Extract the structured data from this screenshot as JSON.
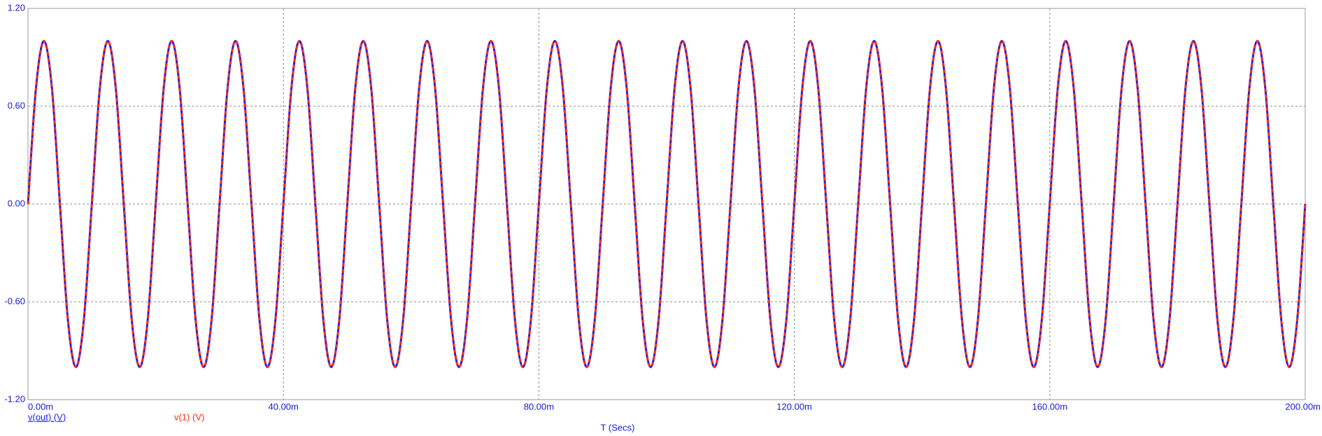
{
  "chart_data": {
    "type": "line",
    "x_label": "T (Secs)",
    "x": [
      0,
      0.00125,
      0.0025,
      0.00375,
      0.005,
      0.00625,
      0.0075,
      0.00875,
      0.01,
      0.01125,
      0.0125,
      0.01375,
      0.015,
      0.01625,
      0.0175,
      0.01875,
      0.02,
      0.02125,
      0.0225,
      0.02375,
      0.025,
      0.02625,
      0.0275,
      0.02875,
      0.03,
      0.03125,
      0.0325,
      0.03375,
      0.035,
      0.03625,
      0.0375,
      0.03875,
      0.04,
      0.04125,
      0.0425,
      0.04375,
      0.045,
      0.04625,
      0.0475,
      0.04875,
      0.05,
      0.05125,
      0.0525,
      0.05375,
      0.055,
      0.05625,
      0.0575,
      0.05875,
      0.06,
      0.06125,
      0.0625,
      0.06375,
      0.065,
      0.06625,
      0.0675,
      0.06875,
      0.07,
      0.07125,
      0.0725,
      0.07375,
      0.075,
      0.07625,
      0.0775,
      0.07875,
      0.08,
      0.08125,
      0.0825,
      0.08375,
      0.085,
      0.08625,
      0.0875,
      0.08875,
      0.09,
      0.09125,
      0.0925,
      0.09375,
      0.095,
      0.09625,
      0.0975,
      0.09875,
      0.1,
      0.10125,
      0.1025,
      0.10375,
      0.105,
      0.10625,
      0.1075,
      0.10875,
      0.11,
      0.11125,
      0.1125,
      0.11375,
      0.115,
      0.11625,
      0.1175,
      0.11875,
      0.12,
      0.12125,
      0.1225,
      0.12375,
      0.125,
      0.12625,
      0.1275,
      0.12875,
      0.13,
      0.13125,
      0.1325,
      0.13375,
      0.135,
      0.13625,
      0.1375,
      0.13875,
      0.14,
      0.14125,
      0.1425,
      0.14375,
      0.145,
      0.14625,
      0.1475,
      0.14875,
      0.15,
      0.15125,
      0.1525,
      0.15375,
      0.155,
      0.15625,
      0.1575,
      0.15875,
      0.16,
      0.16125,
      0.1625,
      0.16375,
      0.165,
      0.16625,
      0.1675,
      0.16875,
      0.17,
      0.17125,
      0.1725,
      0.17375,
      0.175,
      0.17625,
      0.1775,
      0.17875,
      0.18,
      0.18125,
      0.1825,
      0.18375,
      0.185,
      0.18625,
      0.1875,
      0.18875,
      0.19,
      0.19125,
      0.1925,
      0.19375,
      0.195,
      0.19625,
      0.1975,
      0.19875,
      0.2
    ],
    "series": [
      {
        "name": "v(out) (V)",
        "color": "#2020f0",
        "style": "solid",
        "values": [
          0,
          0.71,
          1,
          0.71,
          0,
          -0.71,
          -1,
          -0.71,
          0,
          0.71,
          1,
          0.71,
          0,
          -0.71,
          -1,
          -0.71,
          0,
          0.71,
          1,
          0.71,
          0,
          -0.71,
          -1,
          -0.71,
          0,
          0.71,
          1,
          0.71,
          0,
          -0.71,
          -1,
          -0.71,
          0,
          0.71,
          1,
          0.71,
          0,
          -0.71,
          -1,
          -0.71,
          0,
          0.71,
          1,
          0.71,
          0,
          -0.71,
          -1,
          -0.71,
          0,
          0.71,
          1,
          0.71,
          0,
          -0.71,
          -1,
          -0.71,
          0,
          0.71,
          1,
          0.71,
          0,
          -0.71,
          -1,
          -0.71,
          0,
          0.71,
          1,
          0.71,
          0,
          -0.71,
          -1,
          -0.71,
          0,
          0.71,
          1,
          0.71,
          0,
          -0.71,
          -1,
          -0.71,
          0,
          0.71,
          1,
          0.71,
          0,
          -0.71,
          -1,
          -0.71,
          0,
          0.71,
          1,
          0.71,
          0,
          -0.71,
          -1,
          -0.71,
          0,
          0.71,
          1,
          0.71,
          0,
          -0.71,
          -1,
          -0.71,
          0,
          0.71,
          1,
          0.71,
          0,
          -0.71,
          -1,
          -0.71,
          0,
          0.71,
          1,
          0.71,
          0,
          -0.71,
          -1,
          -0.71,
          0,
          0.71,
          1,
          0.71,
          0,
          -0.71,
          -1,
          -0.71,
          0,
          0.71,
          1,
          0.71,
          0,
          -0.71,
          -1,
          -0.71,
          0,
          0.71,
          1,
          0.71,
          0,
          -0.71,
          -1,
          -0.71,
          0,
          0.71,
          1,
          0.71,
          0,
          -0.71,
          -1,
          -0.71,
          0,
          0.71,
          1,
          0.71,
          0,
          -0.71,
          -1,
          -0.71,
          0
        ]
      },
      {
        "name": "v(1) (V)",
        "color": "#ff2a14",
        "style": "dashed",
        "values": [
          0,
          0.71,
          1,
          0.71,
          0,
          -0.71,
          -1,
          -0.71,
          0,
          0.71,
          1,
          0.71,
          0,
          -0.71,
          -1,
          -0.71,
          0,
          0.71,
          1,
          0.71,
          0,
          -0.71,
          -1,
          -0.71,
          0,
          0.71,
          1,
          0.71,
          0,
          -0.71,
          -1,
          -0.71,
          0,
          0.71,
          1,
          0.71,
          0,
          -0.71,
          -1,
          -0.71,
          0,
          0.71,
          1,
          0.71,
          0,
          -0.71,
          -1,
          -0.71,
          0,
          0.71,
          1,
          0.71,
          0,
          -0.71,
          -1,
          -0.71,
          0,
          0.71,
          1,
          0.71,
          0,
          -0.71,
          -1,
          -0.71,
          0,
          0.71,
          1,
          0.71,
          0,
          -0.71,
          -1,
          -0.71,
          0,
          0.71,
          1,
          0.71,
          0,
          -0.71,
          -1,
          -0.71,
          0,
          0.71,
          1,
          0.71,
          0,
          -0.71,
          -1,
          -0.71,
          0,
          0.71,
          1,
          0.71,
          0,
          -0.71,
          -1,
          -0.71,
          0,
          0.71,
          1,
          0.71,
          0,
          -0.71,
          -1,
          -0.71,
          0,
          0.71,
          1,
          0.71,
          0,
          -0.71,
          -1,
          -0.71,
          0,
          0.71,
          1,
          0.71,
          0,
          -0.71,
          -1,
          -0.71,
          0,
          0.71,
          1,
          0.71,
          0,
          -0.71,
          -1,
          -0.71,
          0,
          0.71,
          1,
          0.71,
          0,
          -0.71,
          -1,
          -0.71,
          0,
          0.71,
          1,
          0.71,
          0,
          -0.71,
          -1,
          -0.71,
          0,
          0.71,
          1,
          0.71,
          0,
          -0.71,
          -1,
          -0.71,
          0,
          0.71,
          1,
          0.71,
          0,
          -0.71,
          -1,
          -0.71,
          0
        ]
      }
    ],
    "xlim": [
      0,
      0.2
    ],
    "xticks": [
      {
        "value": 0,
        "label": "0.00m"
      },
      {
        "value": 0.04,
        "label": "40.00m"
      },
      {
        "value": 0.08,
        "label": "80.00m"
      },
      {
        "value": 0.12,
        "label": "120.00m"
      },
      {
        "value": 0.16,
        "label": "160.00m"
      },
      {
        "value": 0.2,
        "label": "200.00m"
      }
    ],
    "ylim": [
      -1.2,
      1.2
    ],
    "yticks": [
      {
        "value": -1.2,
        "label": "-1.20"
      },
      {
        "value": -0.6,
        "label": "-0.60"
      },
      {
        "value": 0,
        "label": "0.00"
      },
      {
        "value": 0.6,
        "label": "0.60"
      },
      {
        "value": 1.2,
        "label": "1.20"
      }
    ],
    "grid": true
  }
}
